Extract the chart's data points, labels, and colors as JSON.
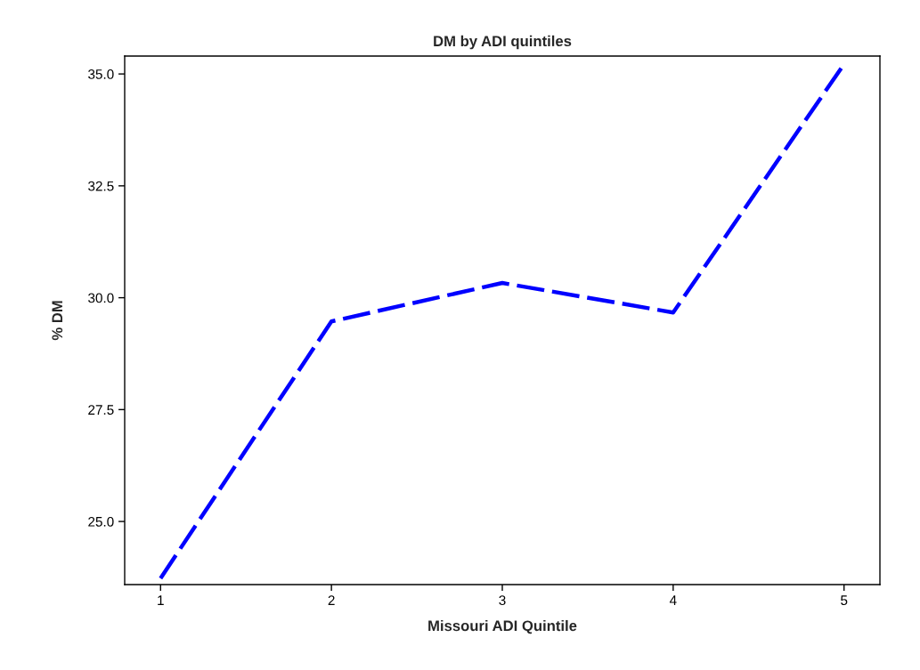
{
  "chart_data": {
    "type": "line",
    "title": "DM by ADI quintiles",
    "xlabel": "Missouri ADI Quintile",
    "ylabel": "% DM",
    "x": [
      1,
      2,
      3,
      4,
      5
    ],
    "series": [
      {
        "color": "#0000ff",
        "values": [
          23.73,
          29.47,
          30.33,
          29.67,
          35.22
        ]
      }
    ],
    "xlim": [
      0.79,
      5.21
    ],
    "xticks": [
      1,
      2,
      3,
      4,
      5
    ],
    "ylim": [
      23.59,
      35.4
    ],
    "yticks": [
      {
        "value": 25,
        "label": "25.0"
      },
      {
        "value": 27.5,
        "label": "27.5"
      },
      {
        "value": 30,
        "label": "30.0"
      },
      {
        "value": 32.5,
        "label": "32.5"
      },
      {
        "value": 35,
        "label": "35.0"
      }
    ],
    "grid": false,
    "marker": "none",
    "line_style": "dashed"
  }
}
